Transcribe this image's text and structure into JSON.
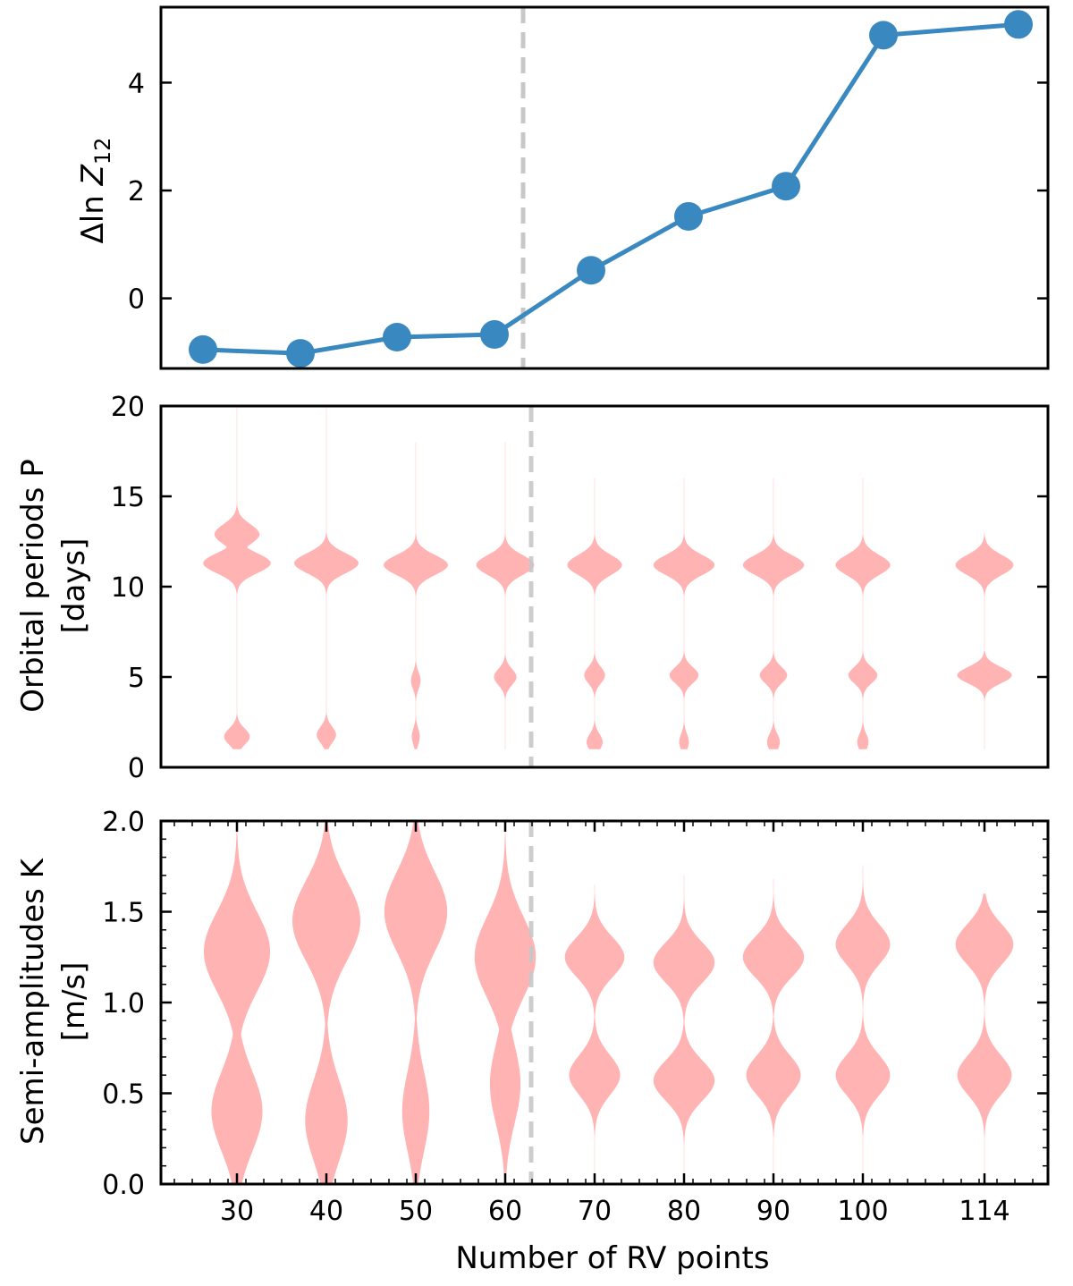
{
  "chart_data": [
    {
      "type": "line",
      "panel": "top",
      "ylabel": {
        "prefix": "Δ",
        "ln": "ln ",
        "var": "Z",
        "sub": "12"
      },
      "x": [
        30,
        40,
        50,
        60,
        70,
        80,
        90,
        100,
        114
      ],
      "x_plot_positions": [
        26.5,
        37.5,
        48.5,
        59.5,
        70.5,
        81.5,
        92.5,
        104,
        118
      ],
      "values": [
        -0.95,
        -1.02,
        -0.72,
        -0.67,
        0.52,
        1.52,
        2.08,
        4.88,
        5.08
      ],
      "ylim": [
        -1.3,
        5.4
      ],
      "yticks": [
        "0",
        "2",
        "4"
      ],
      "ytick_values": [
        0,
        2,
        4
      ],
      "vline_x": 62.5,
      "color": "#3a88c0"
    },
    {
      "type": "violin",
      "panel": "middle",
      "ylabel": [
        "Orbital periods P",
        "[days]"
      ],
      "ylim": [
        0,
        20
      ],
      "yticks": [
        "0",
        "5",
        "10",
        "15",
        "20"
      ],
      "ytick_values": [
        0,
        5,
        10,
        15,
        20
      ],
      "positions": [
        30,
        40,
        50,
        60,
        70,
        80,
        90,
        100,
        114
      ],
      "max_halfwidth_days": [
        {
          "x": 30,
          "peaks": [
            {
              "y": 11.3,
              "w": 4.2
            },
            {
              "y": 12.9,
              "w": 2.8
            },
            {
              "y": 1.7,
              "w": 1.6
            }
          ],
          "top": 20,
          "bottom": 1.0
        },
        {
          "x": 40,
          "peaks": [
            {
              "y": 11.3,
              "w": 4.0
            },
            {
              "y": 1.8,
              "w": 1.2
            }
          ],
          "top": 20,
          "bottom": 1.0
        },
        {
          "x": 50,
          "peaks": [
            {
              "y": 11.2,
              "w": 4.0
            },
            {
              "y": 4.8,
              "w": 0.6
            },
            {
              "y": 1.7,
              "w": 0.5
            }
          ],
          "top": 18,
          "bottom": 1.0
        },
        {
          "x": 60,
          "peaks": [
            {
              "y": 11.2,
              "w": 3.6
            },
            {
              "y": 5.0,
              "w": 1.4
            }
          ],
          "top": 18,
          "bottom": 1.0
        },
        {
          "x": 70,
          "peaks": [
            {
              "y": 11.2,
              "w": 3.4
            },
            {
              "y": 5.1,
              "w": 1.3
            },
            {
              "y": 1.4,
              "w": 1.0
            }
          ],
          "top": 16,
          "bottom": 1.0
        },
        {
          "x": 80,
          "peaks": [
            {
              "y": 11.2,
              "w": 3.8
            },
            {
              "y": 5.1,
              "w": 1.8
            },
            {
              "y": 1.4,
              "w": 0.6
            }
          ],
          "top": 16,
          "bottom": 1.0
        },
        {
          "x": 90,
          "peaks": [
            {
              "y": 11.2,
              "w": 3.8
            },
            {
              "y": 5.1,
              "w": 1.7
            },
            {
              "y": 1.4,
              "w": 0.8
            }
          ],
          "top": 16,
          "bottom": 1.0
        },
        {
          "x": 100,
          "peaks": [
            {
              "y": 11.2,
              "w": 3.4
            },
            {
              "y": 5.1,
              "w": 1.8
            },
            {
              "y": 1.4,
              "w": 0.7
            }
          ],
          "top": 16,
          "bottom": 1.0
        },
        {
          "x": 114,
          "peaks": [
            {
              "y": 11.2,
              "w": 3.6
            },
            {
              "y": 5.1,
              "w": 3.4
            }
          ],
          "top": 13,
          "bottom": 1.0
        }
      ],
      "vline_x": 63,
      "color": "#ffb3b3"
    },
    {
      "type": "violin",
      "panel": "bottom",
      "ylabel": [
        "Semi-amplitudes K",
        "[m/s]"
      ],
      "ylim": [
        0.0,
        2.0
      ],
      "yticks": [
        "0.0",
        "0.5",
        "1.0",
        "1.5",
        "2.0"
      ],
      "ytick_values": [
        0.0,
        0.5,
        1.0,
        1.5,
        2.0
      ],
      "xlabel": "Number of RV points",
      "xticks": [
        "30",
        "40",
        "50",
        "60",
        "70",
        "80",
        "90",
        "100",
        "114"
      ],
      "positions": [
        30,
        40,
        50,
        60,
        70,
        80,
        90,
        100,
        114
      ],
      "violins": [
        {
          "x": 30,
          "peaks": [
            {
              "y": 1.28,
              "w": 3.9
            },
            {
              "y": 0.4,
              "w": 3.0
            }
          ],
          "top": 2.0,
          "bottom": 0.0
        },
        {
          "x": 40,
          "peaks": [
            {
              "y": 1.45,
              "w": 4.0
            },
            {
              "y": 0.35,
              "w": 2.5
            }
          ],
          "top": 2.0,
          "bottom": 0.0
        },
        {
          "x": 50,
          "peaks": [
            {
              "y": 1.5,
              "w": 3.7
            },
            {
              "y": 0.4,
              "w": 1.6
            }
          ],
          "top": 2.0,
          "bottom": 0.0
        },
        {
          "x": 60,
          "peaks": [
            {
              "y": 1.25,
              "w": 3.6
            },
            {
              "y": 0.55,
              "w": 1.8
            }
          ],
          "top": 1.95,
          "bottom": 0.0
        },
        {
          "x": 70,
          "peaks": [
            {
              "y": 1.25,
              "w": 3.5
            },
            {
              "y": 0.6,
              "w": 3.0
            }
          ],
          "top": 1.65,
          "bottom": 0.05
        },
        {
          "x": 80,
          "peaks": [
            {
              "y": 1.22,
              "w": 3.6
            },
            {
              "y": 0.57,
              "w": 3.6
            }
          ],
          "top": 1.7,
          "bottom": 0.05
        },
        {
          "x": 90,
          "peaks": [
            {
              "y": 1.25,
              "w": 3.6
            },
            {
              "y": 0.6,
              "w": 3.2
            }
          ],
          "top": 1.68,
          "bottom": 0.05
        },
        {
          "x": 100,
          "peaks": [
            {
              "y": 1.32,
              "w": 3.2
            },
            {
              "y": 0.6,
              "w": 3.2
            }
          ],
          "top": 1.75,
          "bottom": 0.05
        },
        {
          "x": 114,
          "peaks": [
            {
              "y": 1.32,
              "w": 3.4
            },
            {
              "y": 0.6,
              "w": 3.2
            }
          ],
          "top": 1.6,
          "bottom": 0.05
        }
      ],
      "vline_x": 63,
      "color": "#ffb3b3"
    }
  ]
}
